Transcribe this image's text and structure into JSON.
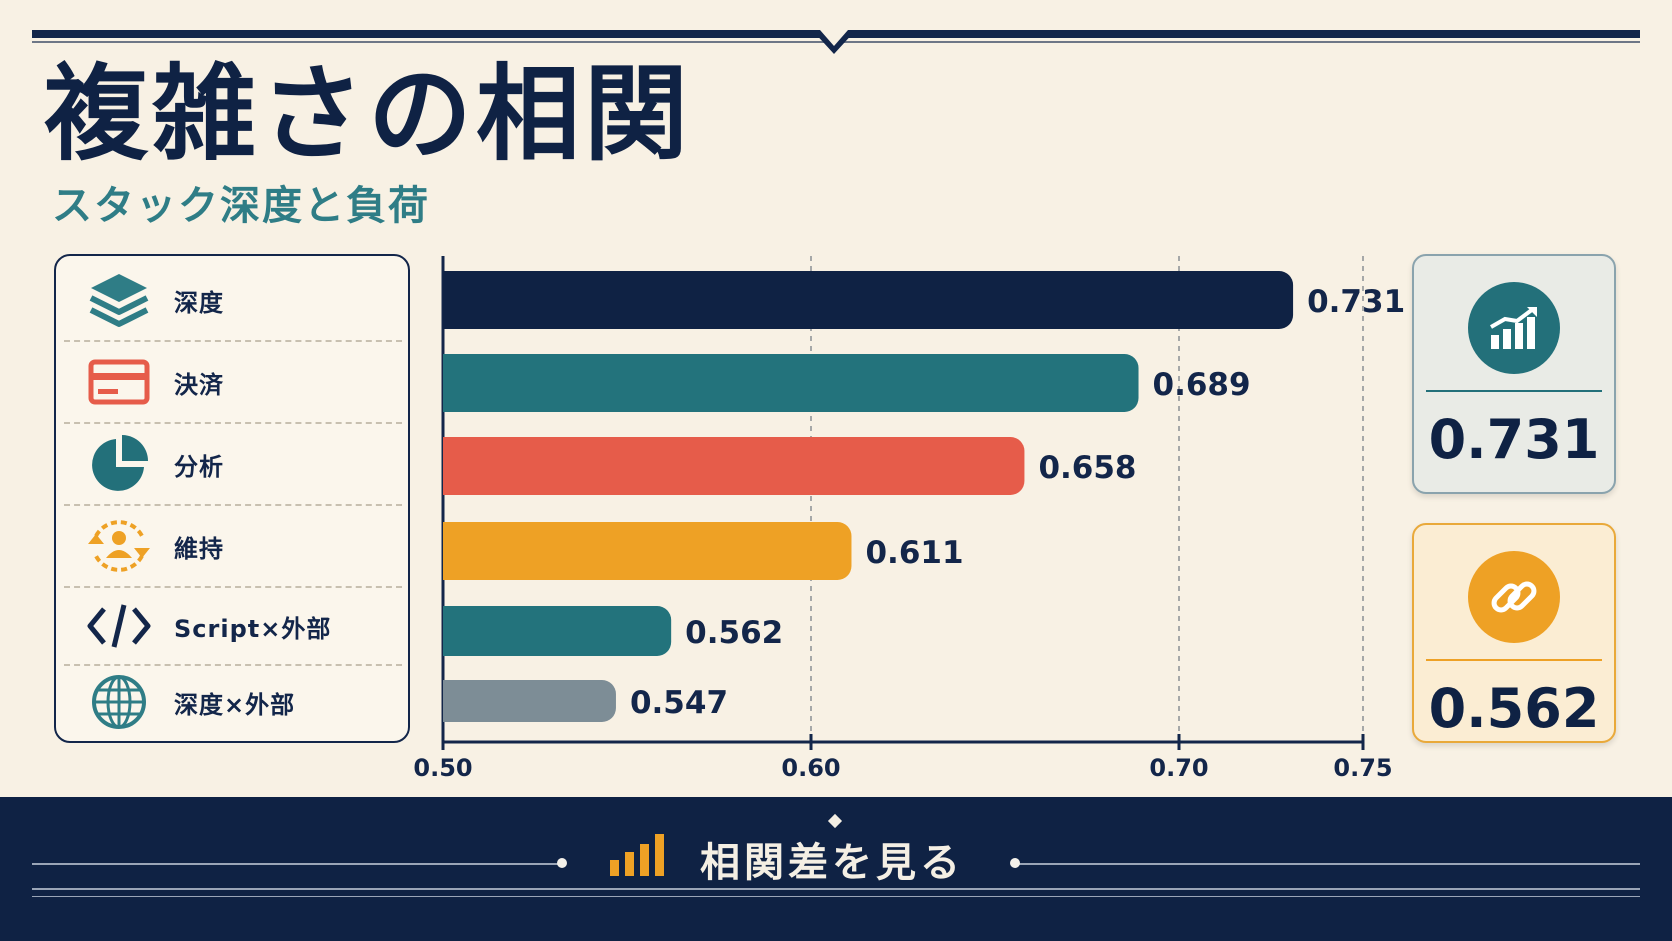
{
  "title": "複雑さの相関",
  "subtitle": "スタック深度と負荷",
  "legend": [
    {
      "label": "深度",
      "icon": "layers-icon",
      "color": "#2f7d86"
    },
    {
      "label": "決済",
      "icon": "credit-card-icon",
      "color": "#e65c4a"
    },
    {
      "label": "分析",
      "icon": "pie-chart-icon",
      "color": "#23707a"
    },
    {
      "label": "維持",
      "icon": "user-cycle-icon",
      "color": "#eea125"
    },
    {
      "label": "Script×外部",
      "icon": "code-icon",
      "color": "#13264a"
    },
    {
      "label": "深度×外部",
      "icon": "globe-icon",
      "color": "#2f7d86"
    }
  ],
  "chart_data": {
    "type": "bar",
    "orientation": "horizontal",
    "values": [
      0.731,
      0.689,
      0.658,
      0.611,
      0.562,
      0.547
    ],
    "value_labels": [
      "0.731",
      "0.689",
      "0.658",
      "0.611",
      "0.562",
      "0.547"
    ],
    "colors": [
      "#0f2244",
      "#23737c",
      "#e65c4a",
      "#eea125",
      "#23737c",
      "#7d8d96"
    ],
    "xlim": [
      0.5,
      0.75
    ],
    "xticks": [
      0.5,
      0.6,
      0.7,
      0.75
    ],
    "xtick_labels": [
      "0.50",
      "0.60",
      "0.70",
      "0.75"
    ],
    "grid": "vertical dashed"
  },
  "cards": [
    {
      "icon": "trend-chart-icon",
      "value": "0.731",
      "accent": "#23707a"
    },
    {
      "icon": "link-icon",
      "value": "0.562",
      "accent": "#eea125"
    }
  ],
  "footer": {
    "label": "相関差を見る",
    "icon": "bar-chart-icon"
  }
}
